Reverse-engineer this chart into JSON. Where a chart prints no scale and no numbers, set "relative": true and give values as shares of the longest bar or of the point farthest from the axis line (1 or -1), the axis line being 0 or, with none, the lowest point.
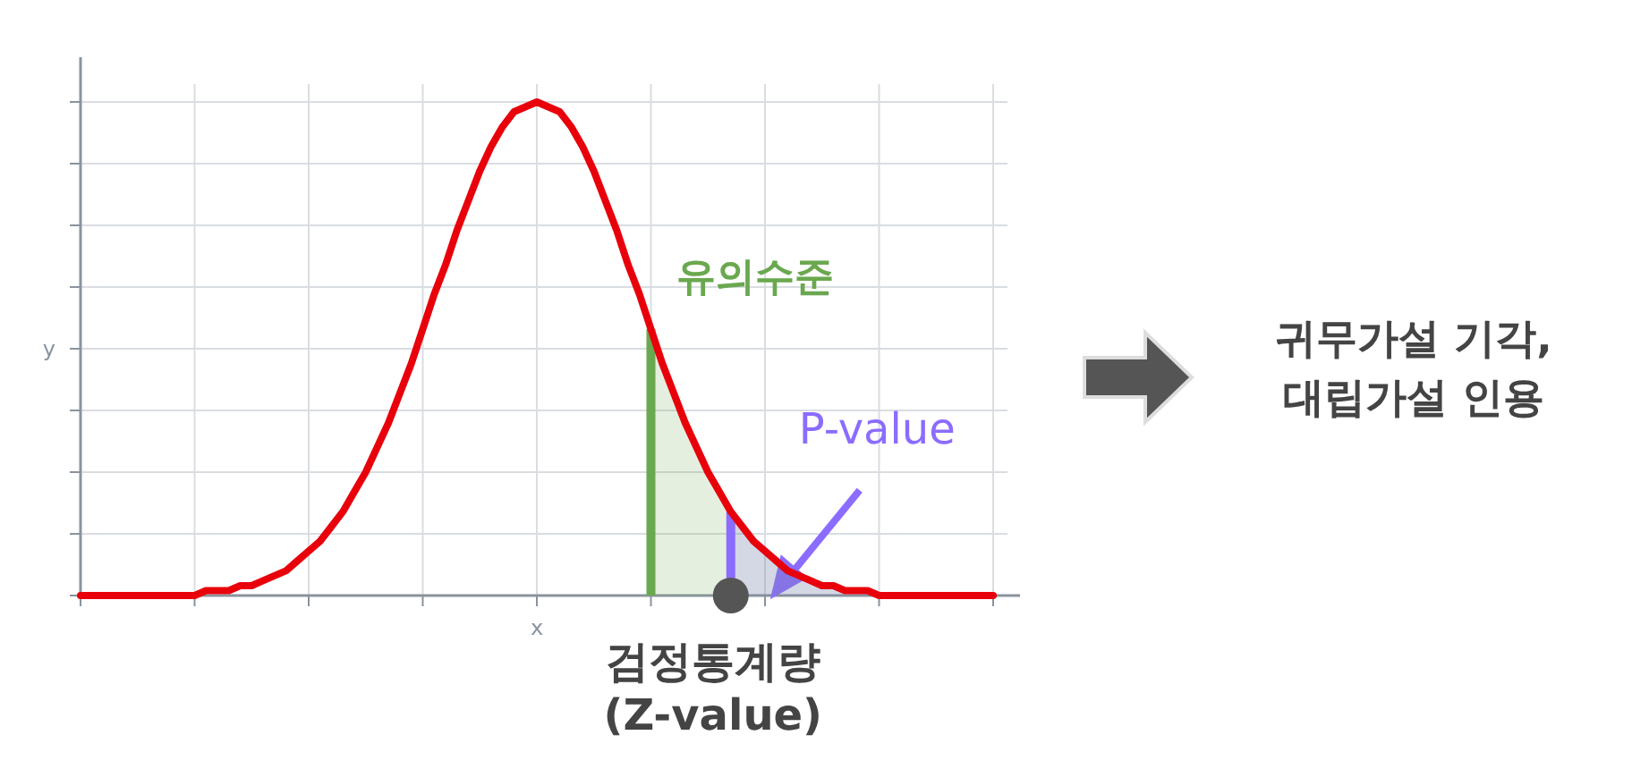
{
  "chart_data": {
    "type": "line",
    "relative": true,
    "xlabel": "x",
    "ylabel": "y",
    "grid": true,
    "categories": [
      null,
      null,
      null,
      null,
      null,
      null,
      null,
      null,
      null,
      null,
      null,
      null,
      null,
      null,
      null,
      null,
      null,
      null,
      null,
      null,
      null,
      null,
      null,
      null,
      null,
      null,
      null,
      null,
      null,
      null,
      null,
      null,
      null,
      null,
      null,
      null,
      null,
      null,
      null,
      null,
      null,
      null,
      null,
      null,
      null,
      null,
      null,
      null,
      null,
      null,
      null,
      null,
      null,
      null,
      null,
      null,
      null,
      null,
      null,
      null,
      null,
      null,
      null,
      null,
      null,
      null,
      null,
      null,
      null,
      null,
      null,
      null,
      null,
      null,
      null,
      null,
      null,
      null,
      null,
      null,
      null
    ],
    "series": [
      {
        "color": "#e8000b",
        "values": [
          0,
          0,
          0,
          0,
          0,
          0,
          0,
          0,
          0,
          0,
          0,
          0.01,
          0.01,
          0.01,
          0.02,
          0.02,
          0.03,
          0.04,
          0.05,
          0.07,
          0.09,
          0.11,
          0.14,
          0.17,
          0.21,
          0.25,
          0.3,
          0.35,
          0.41,
          0.47,
          0.54,
          0.61,
          0.67,
          0.74,
          0.8,
          0.86,
          0.91,
          0.95,
          0.98,
          0.99,
          1,
          0.99,
          0.98,
          0.95,
          0.91,
          0.86,
          0.8,
          0.74,
          0.67,
          0.61,
          0.54,
          0.47,
          0.41,
          0.35,
          0.3,
          0.25,
          0.21,
          0.17,
          0.14,
          0.11,
          0.09,
          0.07,
          0.05,
          0.04,
          0.03,
          0.02,
          0.02,
          0.01,
          0.01,
          0.01,
          0,
          0,
          0,
          0,
          0,
          0,
          0,
          0,
          0,
          0,
          0
        ]
      },
      {
        "type": "area",
        "name": "유의수준",
        "color": "#6aa84f",
        "values": [
          null,
          null,
          null,
          null,
          null,
          null,
          null,
          null,
          null,
          null,
          null,
          null,
          null,
          null,
          null,
          null,
          null,
          null,
          null,
          null,
          null,
          null,
          null,
          null,
          null,
          null,
          null,
          null,
          null,
          null,
          null,
          null,
          null,
          null,
          null,
          null,
          null,
          null,
          null,
          null,
          null,
          null,
          null,
          null,
          null,
          null,
          null,
          null,
          null,
          null,
          0.54,
          0.47,
          0.41,
          0.35,
          0.3,
          0.25,
          0.21,
          0.17,
          0.14,
          0.11,
          0.09,
          0.07,
          0.05,
          0.04,
          0.03,
          0.02,
          0.02,
          0.01,
          0.01,
          0.01,
          0,
          0,
          0,
          0,
          0,
          0,
          0,
          0,
          0,
          0,
          0
        ]
      },
      {
        "type": "area",
        "name": "P-value",
        "color": "#8b6cff",
        "values": [
          null,
          null,
          null,
          null,
          null,
          null,
          null,
          null,
          null,
          null,
          null,
          null,
          null,
          null,
          null,
          null,
          null,
          null,
          null,
          null,
          null,
          null,
          null,
          null,
          null,
          null,
          null,
          null,
          null,
          null,
          null,
          null,
          null,
          null,
          null,
          null,
          null,
          null,
          null,
          null,
          null,
          null,
          null,
          null,
          null,
          null,
          null,
          null,
          null,
          null,
          null,
          null,
          null,
          null,
          null,
          null,
          null,
          0.17,
          0.14,
          0.11,
          0.09,
          0.07,
          0.05,
          0.04,
          0.03,
          0.02,
          0.02,
          0.01,
          0.01,
          0.01,
          0,
          0,
          0,
          0,
          0,
          0,
          0,
          0,
          0,
          0,
          0
        ]
      }
    ],
    "annotations": [
      "검정통계량\n(Z-value)",
      "귀무가설 기각,\n대립가설 인용"
    ]
  }
}
